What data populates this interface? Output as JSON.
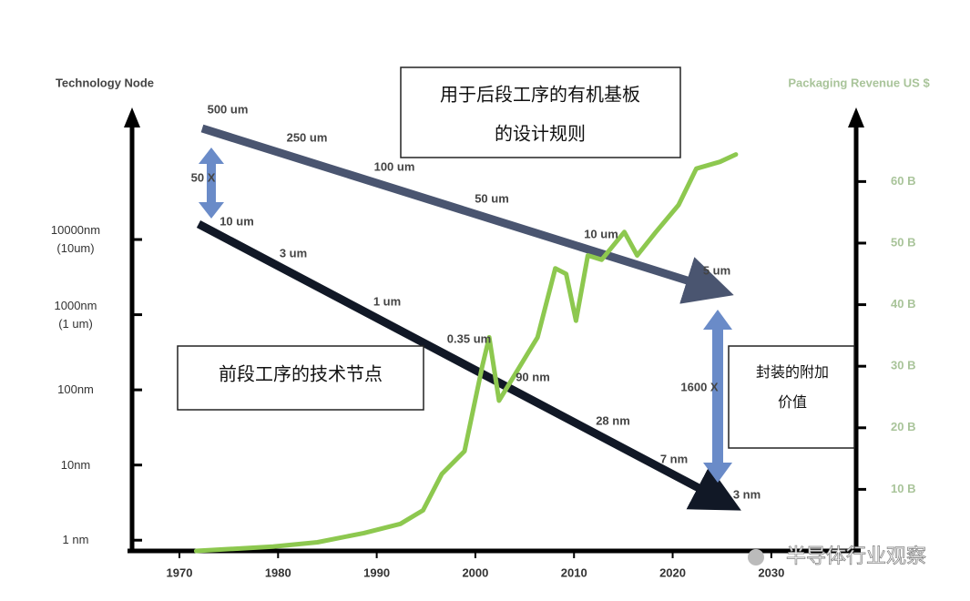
{
  "chart_data": {
    "type": "line",
    "y_title": "Technology Node",
    "y2_title": "Packaging Revenue US $",
    "x": [
      1971.7,
      1979.5,
      1984,
      1988.7,
      1992.4,
      1994.7,
      1996.6,
      1998.9,
      2000.7,
      2001.4,
      2002.4,
      2003.5,
      2006.3,
      2008.1,
      2009.2,
      2010.2,
      2011.4,
      2012.8,
      2015.1,
      2016.4,
      2018.3,
      2020.6,
      2022.4,
      2024.8,
      2026.4
    ],
    "series": [
      {
        "color": "#8dc84f",
        "axis": "y2",
        "values": [
          0,
          0.7,
          1.4,
          2.9,
          4.4,
          6.6,
          12.5,
          16.2,
          30,
          34.7,
          24.4,
          27.3,
          34.7,
          45.9,
          45,
          37.4,
          48,
          47.3,
          51.8,
          48,
          51.8,
          56.2,
          62.1,
          63.2,
          64.4
        ]
      }
    ],
    "xlim": [
      1965.2,
      2038.6
    ],
    "xticks": [
      1970,
      1980,
      1990,
      2000,
      2010,
      2020,
      2030
    ],
    "ylog": true,
    "ylim": [
      0.72,
      470000
    ],
    "yticks": [
      {
        "value": 1,
        "label": "1 nm"
      },
      {
        "value": 10,
        "label": "10nm"
      },
      {
        "value": 100,
        "label": "100nm"
      },
      {
        "value": 1000,
        "label": "1000nm\n(1 um)"
      },
      {
        "value": 10000,
        "label": "10000nm\n(10um)"
      }
    ],
    "y2lim": [
      0,
      71
    ],
    "y2ticks": [
      {
        "value": 10,
        "label": "10 B"
      },
      {
        "value": 20,
        "label": "20 B"
      },
      {
        "value": 30,
        "label": "30 B"
      },
      {
        "value": 40,
        "label": "40 B"
      },
      {
        "value": 50,
        "label": "50 B"
      },
      {
        "value": 60,
        "label": "60 B"
      }
    ],
    "annotations": {
      "back_end_nodes": [
        "500 um",
        "250 um",
        "100 um",
        "50 um",
        "10 um",
        "5 um"
      ],
      "front_end_nodes": [
        "10 um",
        "3 um",
        "1 um",
        "0.35 um",
        "90 nm",
        "28 nm",
        "7 nm",
        "3 nm"
      ],
      "ratios": [
        "50 X",
        "1600 X"
      ],
      "back_end_box": [
        "用于后段工序的有机基板",
        "的设计规则"
      ],
      "front_end_box": [
        "前段工序的技术节点"
      ],
      "value_box": [
        "封装的附加",
        "价值"
      ]
    },
    "watermark": "半导体行业观察"
  }
}
